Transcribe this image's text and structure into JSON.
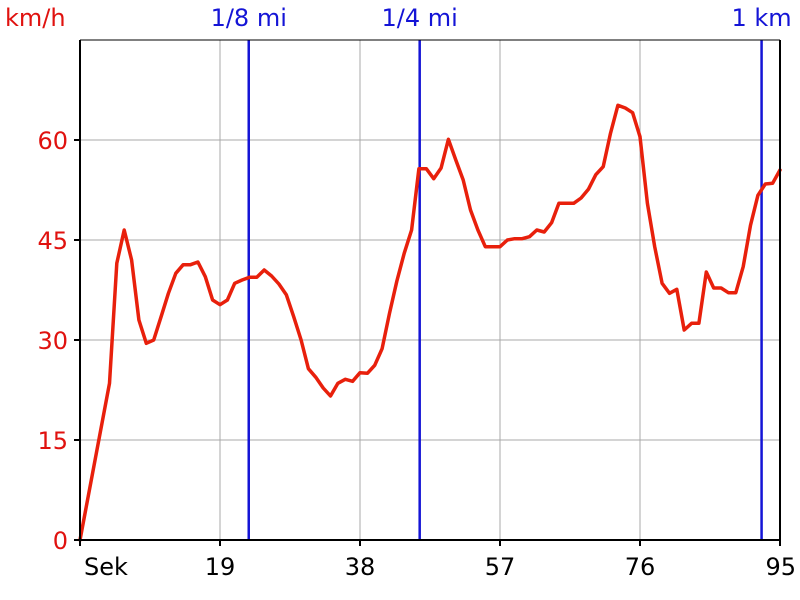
{
  "chart_data": {
    "type": "line",
    "ylabel": "km/h",
    "xlabel": "Sek",
    "xlim": [
      0,
      95
    ],
    "ylim": [
      0,
      75
    ],
    "grid": true,
    "x_ticks": [
      {
        "value": 0,
        "label": "Sek"
      },
      {
        "value": 19,
        "label": "19"
      },
      {
        "value": 38,
        "label": "38"
      },
      {
        "value": 57,
        "label": "57"
      },
      {
        "value": 76,
        "label": "76"
      },
      {
        "value": 95,
        "label": "95"
      }
    ],
    "y_ticks": [
      {
        "value": 0,
        "label": "0"
      },
      {
        "value": 15,
        "label": "15"
      },
      {
        "value": 30,
        "label": "30"
      },
      {
        "value": 45,
        "label": "45"
      },
      {
        "value": 60,
        "label": "60"
      }
    ],
    "markers": [
      {
        "x": 22.9,
        "label": "1/8 mi"
      },
      {
        "x": 46.1,
        "label": "1/4 mi"
      },
      {
        "x": 92.5,
        "label": "1 km"
      }
    ],
    "series": [
      {
        "color": "#e8200c",
        "x": [
          0,
          4,
          5,
          6,
          7,
          8,
          9,
          10,
          11,
          12,
          13,
          14,
          15,
          16,
          17,
          18,
          19,
          20,
          21,
          22,
          23,
          24,
          25,
          26,
          27,
          28,
          29,
          30,
          31,
          32,
          33,
          34,
          35,
          36,
          37,
          38,
          39,
          40,
          41,
          42,
          43,
          44,
          45,
          46,
          47,
          48,
          49,
          50,
          51,
          52,
          53,
          54,
          55,
          56,
          57,
          58,
          59,
          60,
          61,
          62,
          63,
          64,
          65,
          66,
          67,
          68,
          69,
          70,
          71,
          72,
          73,
          74,
          75,
          76,
          77,
          78,
          79,
          80,
          81,
          82,
          83,
          84,
          85,
          86,
          87,
          88,
          89,
          90,
          91,
          92,
          93,
          94,
          95
        ],
        "y": [
          0,
          23.5,
          41.5,
          46.5,
          42.0,
          33.0,
          29.5,
          30.0,
          33.5,
          37.0,
          40.0,
          41.3,
          41.3,
          41.7,
          39.5,
          36.0,
          35.3,
          36.0,
          38.5,
          39.0,
          39.4,
          39.4,
          40.5,
          39.6,
          38.4,
          36.8,
          33.5,
          30.0,
          25.7,
          24.4,
          22.8,
          21.6,
          23.5,
          24.1,
          23.8,
          25.1,
          25.0,
          26.2,
          28.7,
          34.0,
          38.8,
          43.0,
          46.5,
          55.7,
          55.7,
          54.2,
          55.8,
          60.1,
          57.0,
          54.0,
          49.5,
          46.5,
          44.0,
          44.0,
          44.0,
          45.0,
          45.2,
          45.2,
          45.5,
          46.5,
          46.2,
          47.6,
          50.5,
          50.5,
          50.5,
          51.3,
          52.6,
          54.8,
          56.0,
          61.0,
          65.2,
          64.8,
          64.1,
          60.5,
          50.5,
          44.0,
          38.5,
          37.0,
          37.6,
          31.5,
          32.5,
          32.5,
          40.2,
          37.8,
          37.8,
          37.1,
          37.1,
          41.0,
          47.2,
          51.7,
          53.4,
          53.5,
          55.5
        ]
      }
    ]
  }
}
